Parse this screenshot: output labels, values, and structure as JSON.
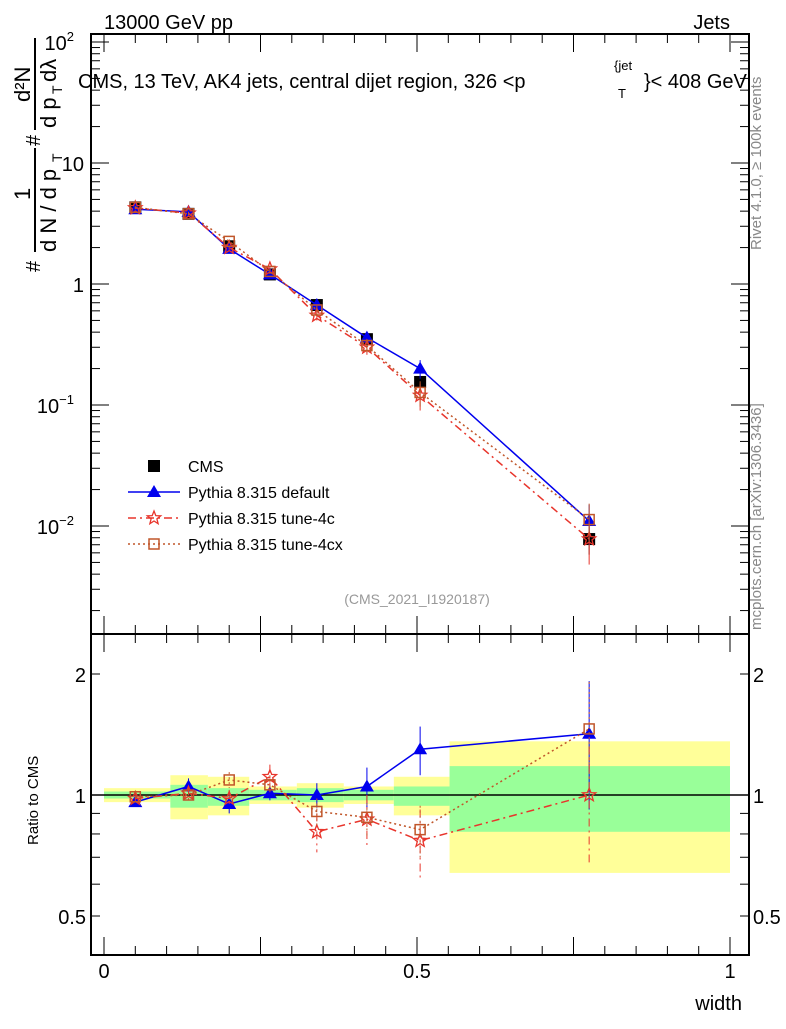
{
  "header": {
    "left": "13000 GeV pp",
    "right": "Jets"
  },
  "side_labels": {
    "rivet": "Rivet 4.1.0, ≥ 100k events",
    "mcplots": "mcplots.cern.ch [arXiv:1306.3436]"
  },
  "colors": {
    "cms": "#000000",
    "default": "#0000ee",
    "tune4c": "#e8352c",
    "tune4cx": "#c0562a",
    "band_inner": "#99ff99",
    "band_outer": "#ffff99"
  },
  "chart_data": [
    {
      "type": "line",
      "title": "CMS, 13 TeV, AK4 jets, central dijet region, 326 <p_T^{jet}< 408 GeV",
      "title_parts": {
        "main": "CMS, 13 TeV, AK4 jets, central dijet region, 326 <p",
        "sub": "T",
        "sup": "{jet",
        "tail": "}< 408 GeV"
      },
      "ylabel": "1 / (d N / d p_T) · d²N / (d p_T dλ)",
      "ylabel_parts": {
        "hash": "#",
        "num1": "1",
        "den1": "d N / d p",
        "num2": "d²N",
        "den2": "d p",
        "den2b": " dλ",
        "sub": "T"
      },
      "yscale": "log",
      "ylim": [
        0.00125,
        116
      ],
      "yticks": [
        {
          "v": 0.01,
          "label": "10",
          "exp": "−2"
        },
        {
          "v": 0.1,
          "label": "10",
          "exp": "−1"
        },
        {
          "v": 1,
          "label": "1",
          "exp": ""
        },
        {
          "v": 10,
          "label": "10",
          "exp": ""
        },
        {
          "v": 100,
          "label": "10",
          "exp": "2"
        }
      ],
      "x": [
        0.05,
        0.135,
        0.2,
        0.265,
        0.34,
        0.42,
        0.505,
        0.775
      ],
      "series": [
        {
          "name": "CMS",
          "key": "cms",
          "marker": "square-filled",
          "values": [
            4.3,
            3.8,
            2.05,
            1.2,
            0.67,
            0.35,
            0.155,
            0.0078
          ],
          "errors": [
            0.1,
            0.1,
            0.06,
            0.04,
            0.03,
            0.02,
            0.012,
            0.002
          ]
        },
        {
          "name": "Pythia 8.315 default",
          "key": "default",
          "marker": "triangle",
          "line": "solid",
          "values": [
            4.15,
            3.95,
            1.95,
            1.2,
            0.67,
            0.36,
            0.2,
            0.011
          ],
          "errors": [
            0.1,
            0.1,
            0.08,
            0.06,
            0.05,
            0.04,
            0.035,
            0.004
          ]
        },
        {
          "name": "Pythia 8.315 tune-4c",
          "key": "tune4c",
          "marker": "star",
          "line": "dashdot",
          "values": [
            4.25,
            3.85,
            2.0,
            1.33,
            0.55,
            0.3,
            0.12,
            0.0078
          ],
          "errors": [
            0.1,
            0.1,
            0.08,
            0.06,
            0.05,
            0.04,
            0.03,
            0.003
          ]
        },
        {
          "name": "Pythia 8.315 tune-4cx",
          "key": "tune4cx",
          "marker": "square-open",
          "line": "dotted",
          "values": [
            4.3,
            3.8,
            2.25,
            1.27,
            0.61,
            0.31,
            0.127,
            0.0113
          ],
          "errors": [
            0.1,
            0.1,
            0.08,
            0.06,
            0.05,
            0.04,
            0.03,
            0.004
          ]
        }
      ],
      "legend_placement": "lower-left",
      "annotation": "(CMS_2021_I1920187)"
    },
    {
      "type": "line",
      "ylabel": "Ratio to CMS",
      "xlabel": "width",
      "yscale": "log",
      "ylim": [
        0.4,
        2.5
      ],
      "xlim": [
        -0.02,
        1.0
      ],
      "xticks": [
        {
          "v": 0,
          "label": "0"
        },
        {
          "v": 0.5,
          "label": "0.5"
        },
        {
          "v": 1,
          "label": "1"
        }
      ],
      "yticks": [
        {
          "v": 0.5,
          "label": "0.5"
        },
        {
          "v": 1,
          "label": "1"
        },
        {
          "v": 2,
          "label": "2"
        }
      ],
      "bin_edges": [
        0.0,
        0.106,
        0.166,
        0.232,
        0.308,
        0.383,
        0.463,
        0.552,
        1.0
      ],
      "band_inner": [
        [
          0.98,
          1.02
        ],
        [
          0.93,
          1.06
        ],
        [
          0.94,
          1.04
        ],
        [
          0.97,
          1.03
        ],
        [
          0.96,
          1.04
        ],
        [
          0.97,
          1.03
        ],
        [
          0.94,
          1.05
        ],
        [
          0.81,
          1.18
        ]
      ],
      "band_outer": [
        [
          0.96,
          1.04
        ],
        [
          0.87,
          1.12
        ],
        [
          0.89,
          1.11
        ],
        [
          0.95,
          1.05
        ],
        [
          0.93,
          1.07
        ],
        [
          0.95,
          1.05
        ],
        [
          0.89,
          1.11
        ],
        [
          0.64,
          1.36
        ]
      ],
      "x": [
        0.05,
        0.135,
        0.2,
        0.265,
        0.34,
        0.42,
        0.505,
        0.775
      ],
      "series": [
        {
          "name": "Pythia 8.315 default",
          "key": "default",
          "marker": "triangle",
          "line": "solid",
          "values": [
            0.96,
            1.05,
            0.95,
            1.01,
            1.0,
            1.05,
            1.3,
            1.42
          ],
          "errors": [
            0.02,
            0.05,
            0.05,
            0.04,
            0.07,
            0.12,
            0.18,
            0.5
          ]
        },
        {
          "name": "Pythia 8.315 tune-4c",
          "key": "tune4c",
          "marker": "star",
          "line": "dashdot",
          "values": [
            0.98,
            1.01,
            0.98,
            1.11,
            0.81,
            0.87,
            0.77,
            1.0
          ],
          "errors": [
            0.03,
            0.04,
            0.05,
            0.08,
            0.09,
            0.13,
            0.15,
            0.32
          ]
        },
        {
          "name": "Pythia 8.315 tune-4cx",
          "key": "tune4cx",
          "marker": "square-open",
          "line": "dotted",
          "values": [
            0.99,
            1.0,
            1.09,
            1.06,
            0.91,
            0.88,
            0.82,
            1.46
          ],
          "errors": [
            0.03,
            0.04,
            0.05,
            0.06,
            0.07,
            0.1,
            0.12,
            0.45
          ]
        }
      ]
    }
  ]
}
